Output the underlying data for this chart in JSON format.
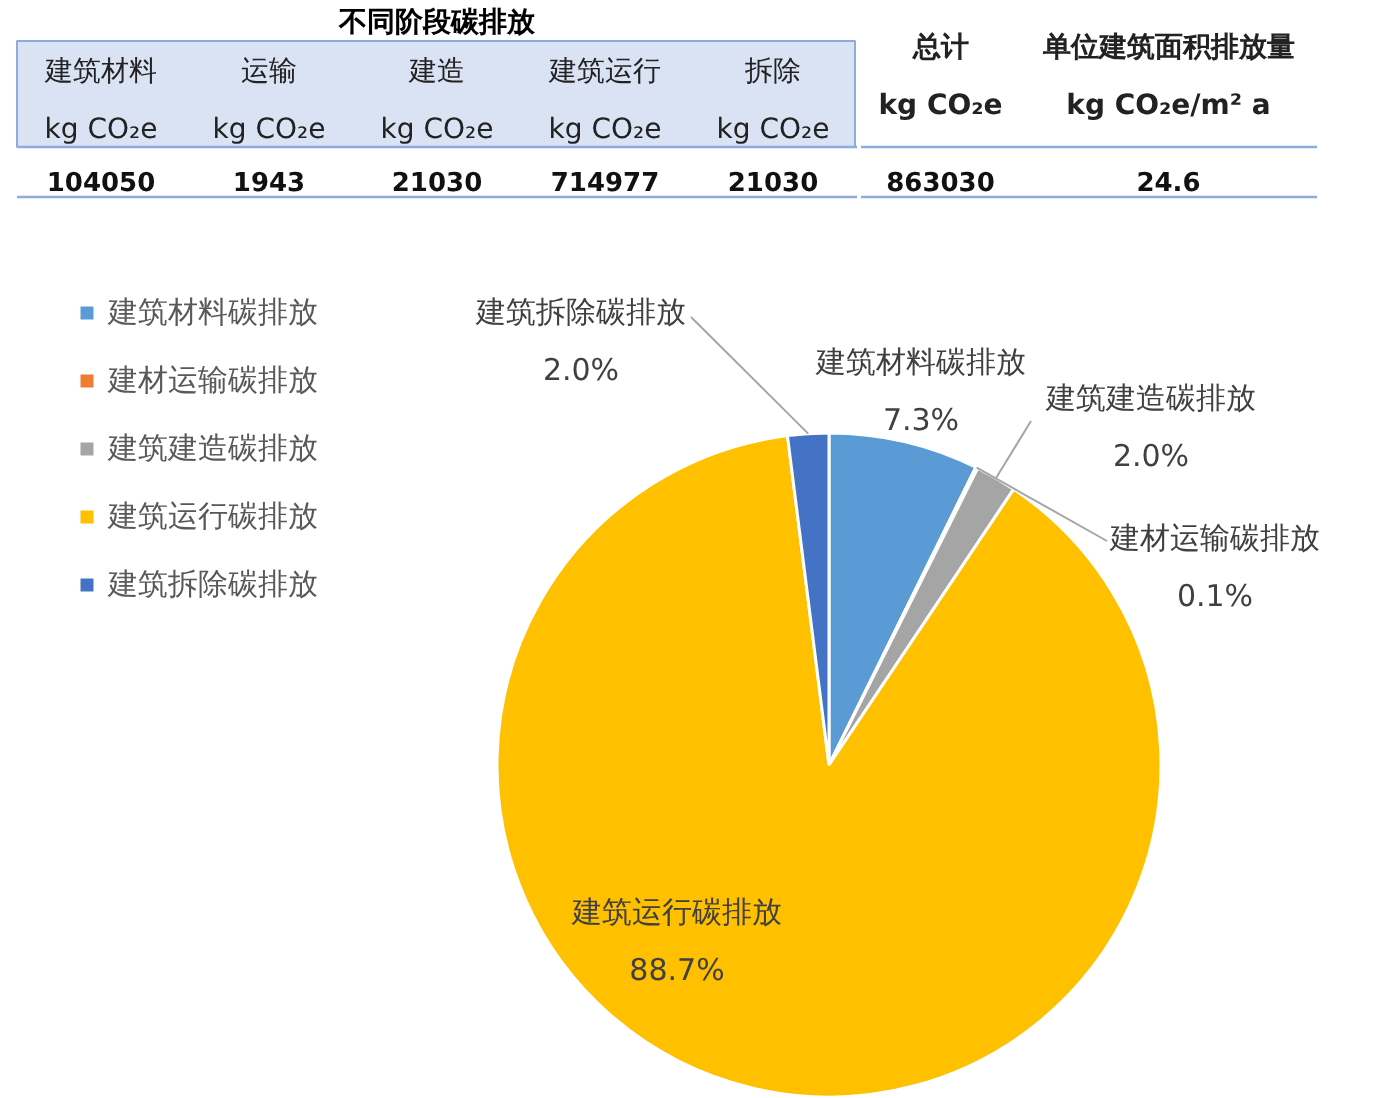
{
  "chart_data": [
    {
      "type": "other",
      "title": "不同阶段碳排放",
      "categories": [
        "建筑材料\nkg CO₂e",
        "运输\nkg CO₂e",
        "建造\nkg CO₂e",
        "建筑运行\nkg CO₂e",
        "拆除\nkg CO₂e"
      ],
      "values": [
        104050,
        1943,
        21030,
        714977,
        21030
      ],
      "data_labels": true
    },
    {
      "type": "other",
      "categories": [
        "总计\nkg CO₂e",
        "单位建筑面积排放量\nkg CO₂e/m² a"
      ],
      "values": [
        863030,
        24.6
      ],
      "data_labels": true
    },
    {
      "type": "pie",
      "categories": [
        "建筑材料碳排放",
        "建材运输碳排放",
        "建筑建造碳排放",
        "建筑运行碳排放",
        "建筑拆除碳排放"
      ],
      "values": [
        7.3,
        0.1,
        2.0,
        88.7,
        2.0
      ],
      "colors": [
        "#5b9bd5",
        "#ed7d31",
        "#a5a5a5",
        "#ffc000",
        "#4472c4"
      ],
      "value_labels": [
        "7.3%",
        "0.1%",
        "2.0%",
        "88.7%",
        "2.0%"
      ],
      "legend": "top left"
    }
  ]
}
